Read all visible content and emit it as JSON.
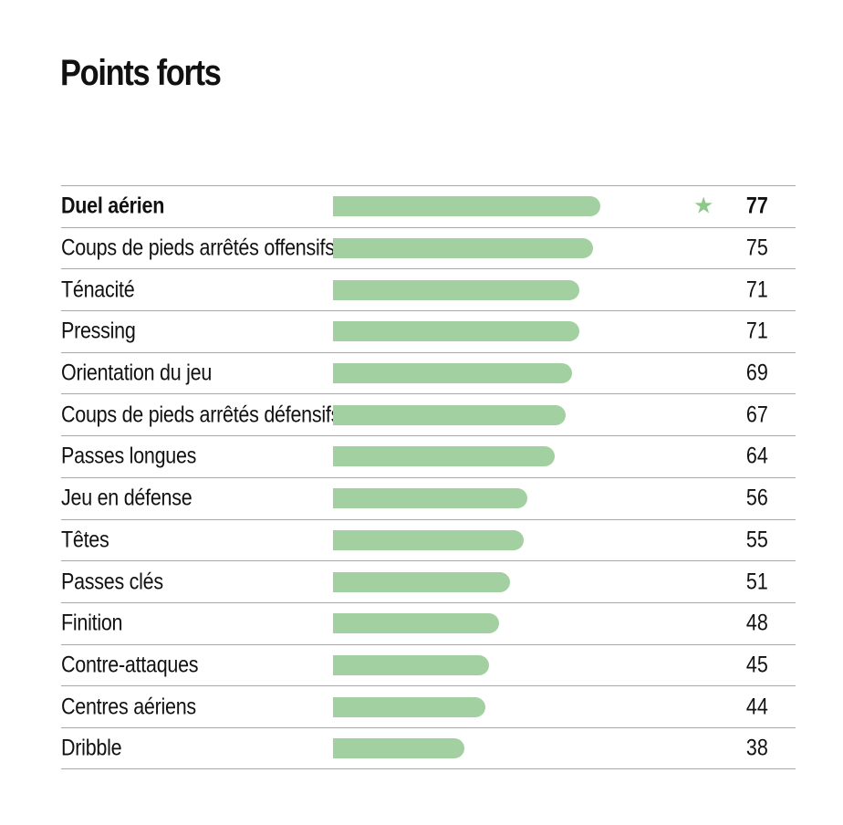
{
  "title": "Points forts",
  "accent_color": "#a3d0a0",
  "star_icon": "star-icon",
  "chart_data": {
    "type": "bar",
    "orientation": "horizontal",
    "title": "Points forts",
    "xlim": [
      0,
      100
    ],
    "highlighted": "Duel aérien",
    "rows": [
      {
        "label": "Duel aérien",
        "value": 77,
        "highlight": true
      },
      {
        "label": "Coups de pieds arrêtés offensifs",
        "value": 75
      },
      {
        "label": "Ténacité",
        "value": 71
      },
      {
        "label": "Pressing",
        "value": 71
      },
      {
        "label": "Orientation du jeu",
        "value": 69
      },
      {
        "label": "Coups de pieds arrêtés défensifs",
        "value": 67
      },
      {
        "label": "Passes longues",
        "value": 64
      },
      {
        "label": "Jeu en défense",
        "value": 56
      },
      {
        "label": "Têtes",
        "value": 55
      },
      {
        "label": "Passes clés",
        "value": 51
      },
      {
        "label": "Finition",
        "value": 48
      },
      {
        "label": "Contre-attaques",
        "value": 45
      },
      {
        "label": "Centres aériens",
        "value": 44
      },
      {
        "label": "Dribble",
        "value": 38
      }
    ]
  }
}
